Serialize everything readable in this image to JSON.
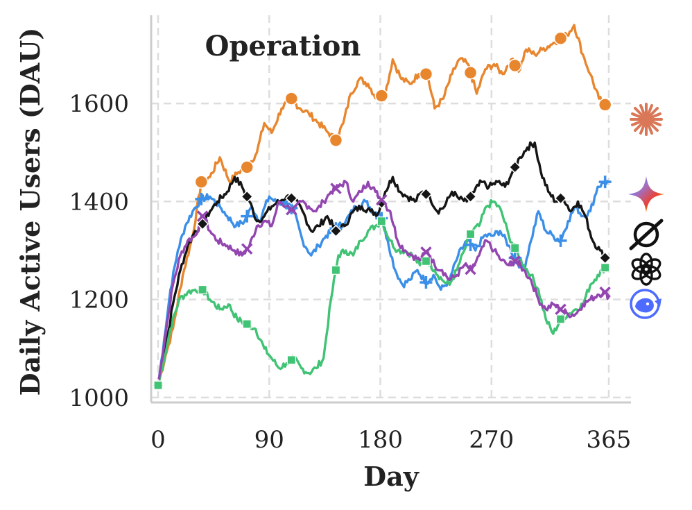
{
  "chart_data": {
    "type": "line",
    "title": "Operation",
    "xlabel": "Day",
    "ylabel": "Daily Active Users (DAU)",
    "xlim": [
      0,
      365
    ],
    "ylim": [
      990,
      1780
    ],
    "xticks": [
      0,
      90,
      180,
      270,
      365
    ],
    "yticks": [
      1000,
      1200,
      1400,
      1600
    ],
    "grid": true,
    "legend": "right-side icons",
    "series": [
      {
        "name": "Claude",
        "icon": "claude-icon",
        "color": "#E8862E",
        "marker": "circle",
        "points": [
          [
            0,
            1025
          ],
          [
            6,
            1085
          ],
          [
            12,
            1140
          ],
          [
            20,
            1250
          ],
          [
            28,
            1330
          ],
          [
            35,
            1440
          ],
          [
            42,
            1450
          ],
          [
            50,
            1490
          ],
          [
            58,
            1440
          ],
          [
            65,
            1460
          ],
          [
            72,
            1470
          ],
          [
            80,
            1500
          ],
          [
            86,
            1560
          ],
          [
            92,
            1540
          ],
          [
            100,
            1590
          ],
          [
            108,
            1610
          ],
          [
            115,
            1590
          ],
          [
            122,
            1580
          ],
          [
            130,
            1560
          ],
          [
            138,
            1540
          ],
          [
            144,
            1525
          ],
          [
            150,
            1560
          ],
          [
            156,
            1620
          ],
          [
            163,
            1650
          ],
          [
            170,
            1640
          ],
          [
            177,
            1610
          ],
          [
            184,
            1620
          ],
          [
            190,
            1690
          ],
          [
            197,
            1650
          ],
          [
            204,
            1640
          ],
          [
            211,
            1660
          ],
          [
            218,
            1660
          ],
          [
            224,
            1590
          ],
          [
            231,
            1610
          ],
          [
            238,
            1660
          ],
          [
            244,
            1690
          ],
          [
            251,
            1680
          ],
          [
            258,
            1620
          ],
          [
            265,
            1670
          ],
          [
            272,
            1680
          ],
          [
            279,
            1660
          ],
          [
            286,
            1690
          ],
          [
            292,
            1665
          ],
          [
            298,
            1710
          ],
          [
            305,
            1700
          ],
          [
            311,
            1710
          ],
          [
            318,
            1720
          ],
          [
            324,
            1730
          ],
          [
            331,
            1740
          ],
          [
            337,
            1760
          ],
          [
            344,
            1700
          ],
          [
            350,
            1660
          ],
          [
            357,
            1610
          ],
          [
            365,
            1590
          ]
        ],
        "marker_x": [
          35,
          72,
          108,
          144,
          181,
          217,
          253,
          289,
          326,
          362
        ]
      },
      {
        "name": "Gemini",
        "icon": "gemini-icon",
        "color": "#3B8FE8",
        "marker": "plus",
        "points": [
          [
            0,
            1025
          ],
          [
            5,
            1120
          ],
          [
            10,
            1220
          ],
          [
            16,
            1300
          ],
          [
            22,
            1350
          ],
          [
            28,
            1380
          ],
          [
            35,
            1405
          ],
          [
            42,
            1410
          ],
          [
            50,
            1390
          ],
          [
            56,
            1370
          ],
          [
            63,
            1350
          ],
          [
            70,
            1360
          ],
          [
            76,
            1390
          ],
          [
            82,
            1360
          ],
          [
            90,
            1410
          ],
          [
            97,
            1395
          ],
          [
            104,
            1400
          ],
          [
            110,
            1380
          ],
          [
            117,
            1320
          ],
          [
            124,
            1290
          ],
          [
            130,
            1310
          ],
          [
            136,
            1330
          ],
          [
            144,
            1345
          ],
          [
            152,
            1360
          ],
          [
            160,
            1390
          ],
          [
            168,
            1400
          ],
          [
            174,
            1380
          ],
          [
            180,
            1375
          ],
          [
            186,
            1320
          ],
          [
            192,
            1260
          ],
          [
            198,
            1230
          ],
          [
            204,
            1240
          ],
          [
            210,
            1260
          ],
          [
            217,
            1235
          ],
          [
            223,
            1250
          ],
          [
            229,
            1220
          ],
          [
            236,
            1240
          ],
          [
            243,
            1290
          ],
          [
            250,
            1320
          ],
          [
            257,
            1300
          ],
          [
            264,
            1330
          ],
          [
            271,
            1330
          ],
          [
            277,
            1340
          ],
          [
            284,
            1310
          ],
          [
            290,
            1280
          ],
          [
            296,
            1260
          ],
          [
            302,
            1320
          ],
          [
            308,
            1380
          ],
          [
            314,
            1340
          ],
          [
            320,
            1330
          ],
          [
            326,
            1320
          ],
          [
            332,
            1360
          ],
          [
            338,
            1390
          ],
          [
            344,
            1370
          ],
          [
            350,
            1380
          ],
          [
            356,
            1430
          ],
          [
            362,
            1440
          ],
          [
            365,
            1440
          ]
        ],
        "marker_x": [
          35,
          72,
          108,
          144,
          181,
          217,
          253,
          289,
          326,
          362
        ]
      },
      {
        "name": "Grok",
        "icon": "grok-icon",
        "color": "#151515",
        "marker": "diamond",
        "points": [
          [
            0,
            1025
          ],
          [
            6,
            1100
          ],
          [
            12,
            1190
          ],
          [
            18,
            1260
          ],
          [
            24,
            1310
          ],
          [
            30,
            1340
          ],
          [
            35,
            1350
          ],
          [
            42,
            1380
          ],
          [
            48,
            1400
          ],
          [
            56,
            1420
          ],
          [
            62,
            1450
          ],
          [
            68,
            1430
          ],
          [
            74,
            1400
          ],
          [
            80,
            1360
          ],
          [
            86,
            1370
          ],
          [
            92,
            1390
          ],
          [
            98,
            1400
          ],
          [
            104,
            1410
          ],
          [
            110,
            1405
          ],
          [
            117,
            1380
          ],
          [
            124,
            1340
          ],
          [
            130,
            1350
          ],
          [
            137,
            1370
          ],
          [
            144,
            1340
          ],
          [
            151,
            1350
          ],
          [
            158,
            1380
          ],
          [
            165,
            1390
          ],
          [
            172,
            1380
          ],
          [
            178,
            1375
          ],
          [
            184,
            1420
          ],
          [
            190,
            1450
          ],
          [
            196,
            1420
          ],
          [
            202,
            1410
          ],
          [
            208,
            1400
          ],
          [
            214,
            1420
          ],
          [
            220,
            1410
          ],
          [
            226,
            1380
          ],
          [
            232,
            1390
          ],
          [
            238,
            1420
          ],
          [
            244,
            1405
          ],
          [
            250,
            1400
          ],
          [
            256,
            1420
          ],
          [
            262,
            1440
          ],
          [
            268,
            1430
          ],
          [
            275,
            1440
          ],
          [
            281,
            1430
          ],
          [
            287,
            1460
          ],
          [
            293,
            1490
          ],
          [
            299,
            1510
          ],
          [
            305,
            1520
          ],
          [
            310,
            1460
          ],
          [
            316,
            1420
          ],
          [
            322,
            1400
          ],
          [
            328,
            1410
          ],
          [
            334,
            1380
          ],
          [
            340,
            1400
          ],
          [
            346,
            1370
          ],
          [
            352,
            1320
          ],
          [
            358,
            1300
          ],
          [
            362,
            1285
          ],
          [
            365,
            1290
          ]
        ],
        "marker_x": [
          0,
          36,
          72,
          108,
          144,
          181,
          217,
          253,
          289,
          326,
          362
        ]
      },
      {
        "name": "ChatGPT",
        "icon": "chatgpt-icon",
        "color": "#40C374",
        "marker": "square",
        "points": [
          [
            0,
            1025
          ],
          [
            5,
            1080
          ],
          [
            10,
            1140
          ],
          [
            17,
            1200
          ],
          [
            24,
            1215
          ],
          [
            30,
            1220
          ],
          [
            36,
            1220
          ],
          [
            42,
            1200
          ],
          [
            50,
            1180
          ],
          [
            57,
            1190
          ],
          [
            64,
            1160
          ],
          [
            72,
            1150
          ],
          [
            79,
            1140
          ],
          [
            86,
            1100
          ],
          [
            92,
            1080
          ],
          [
            98,
            1060
          ],
          [
            104,
            1070
          ],
          [
            110,
            1080
          ],
          [
            116,
            1060
          ],
          [
            122,
            1050
          ],
          [
            128,
            1060
          ],
          [
            134,
            1080
          ],
          [
            140,
            1200
          ],
          [
            146,
            1290
          ],
          [
            152,
            1300
          ],
          [
            158,
            1290
          ],
          [
            164,
            1320
          ],
          [
            170,
            1340
          ],
          [
            176,
            1350
          ],
          [
            181,
            1360
          ],
          [
            188,
            1320
          ],
          [
            194,
            1300
          ],
          [
            200,
            1300
          ],
          [
            206,
            1290
          ],
          [
            212,
            1270
          ],
          [
            218,
            1280
          ],
          [
            224,
            1260
          ],
          [
            230,
            1240
          ],
          [
            236,
            1230
          ],
          [
            242,
            1260
          ],
          [
            248,
            1300
          ],
          [
            254,
            1340
          ],
          [
            260,
            1350
          ],
          [
            266,
            1390
          ],
          [
            272,
            1400
          ],
          [
            278,
            1380
          ],
          [
            284,
            1330
          ],
          [
            290,
            1300
          ],
          [
            296,
            1270
          ],
          [
            302,
            1250
          ],
          [
            308,
            1220
          ],
          [
            314,
            1160
          ],
          [
            320,
            1130
          ],
          [
            326,
            1160
          ],
          [
            332,
            1170
          ],
          [
            338,
            1180
          ],
          [
            344,
            1190
          ],
          [
            350,
            1230
          ],
          [
            356,
            1250
          ],
          [
            362,
            1265
          ],
          [
            365,
            1270
          ]
        ],
        "marker_x": [
          0,
          36,
          72,
          108,
          144,
          181,
          217,
          253,
          289,
          326,
          362
        ]
      },
      {
        "name": "DeepSeek",
        "icon": "deepseek-icon",
        "color": "#9345B0",
        "marker": "x",
        "points": [
          [
            0,
            1025
          ],
          [
            6,
            1130
          ],
          [
            12,
            1230
          ],
          [
            18,
            1290
          ],
          [
            24,
            1320
          ],
          [
            30,
            1330
          ],
          [
            36,
            1370
          ],
          [
            42,
            1340
          ],
          [
            48,
            1320
          ],
          [
            56,
            1310
          ],
          [
            62,
            1300
          ],
          [
            68,
            1290
          ],
          [
            74,
            1310
          ],
          [
            80,
            1350
          ],
          [
            86,
            1360
          ],
          [
            92,
            1350
          ],
          [
            98,
            1400
          ],
          [
            104,
            1390
          ],
          [
            110,
            1380
          ],
          [
            116,
            1400
          ],
          [
            122,
            1390
          ],
          [
            128,
            1380
          ],
          [
            134,
            1400
          ],
          [
            140,
            1420
          ],
          [
            146,
            1430
          ],
          [
            152,
            1440
          ],
          [
            158,
            1400
          ],
          [
            164,
            1420
          ],
          [
            170,
            1440
          ],
          [
            176,
            1420
          ],
          [
            182,
            1400
          ],
          [
            188,
            1380
          ],
          [
            194,
            1320
          ],
          [
            200,
            1300
          ],
          [
            206,
            1290
          ],
          [
            212,
            1280
          ],
          [
            218,
            1300
          ],
          [
            224,
            1270
          ],
          [
            230,
            1260
          ],
          [
            236,
            1240
          ],
          [
            242,
            1250
          ],
          [
            248,
            1270
          ],
          [
            254,
            1260
          ],
          [
            260,
            1290
          ],
          [
            266,
            1320
          ],
          [
            272,
            1300
          ],
          [
            278,
            1280
          ],
          [
            284,
            1270
          ],
          [
            290,
            1280
          ],
          [
            296,
            1260
          ],
          [
            302,
            1240
          ],
          [
            308,
            1200
          ],
          [
            314,
            1180
          ],
          [
            320,
            1190
          ],
          [
            326,
            1180
          ],
          [
            332,
            1170
          ],
          [
            338,
            1170
          ],
          [
            344,
            1190
          ],
          [
            350,
            1200
          ],
          [
            356,
            1210
          ],
          [
            362,
            1215
          ],
          [
            365,
            1205
          ]
        ],
        "marker_x": [
          36,
          72,
          108,
          144,
          181,
          217,
          253,
          289,
          326,
          362
        ]
      }
    ]
  }
}
